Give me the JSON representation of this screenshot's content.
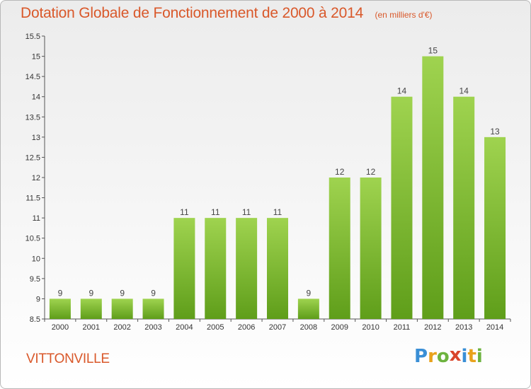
{
  "chart_data": {
    "type": "bar",
    "title": "Dotation Globale de Fonctionnement de 2000 à 2014",
    "unit": "(en milliers d'€)",
    "categories": [
      "2000",
      "2001",
      "2002",
      "2003",
      "2004",
      "2005",
      "2006",
      "2007",
      "2008",
      "2009",
      "2010",
      "2011",
      "2012",
      "2013",
      "2014"
    ],
    "values": [
      9,
      9,
      9,
      9,
      11,
      11,
      11,
      11,
      9,
      12,
      12,
      14,
      15,
      14,
      13
    ],
    "ylim": [
      8.5,
      15.5
    ],
    "yticks": [
      "8.5",
      "9",
      "9.5",
      "10",
      "10.5",
      "11",
      "11.5",
      "12",
      "12.5",
      "13",
      "13.5",
      "14",
      "14.5",
      "15",
      "15.5"
    ],
    "grid": false,
    "bar_color": "#7bbd2e",
    "xlabel": "",
    "ylabel": ""
  },
  "footer": {
    "commune": "VITTONVILLE",
    "logo_letters": [
      "P",
      "r",
      "o",
      "x",
      "i",
      "t",
      "i"
    ],
    "logo_colors": [
      "#3a8fd6",
      "#e8a21c",
      "#6db33f",
      "#d9452b",
      "#3a8fd6",
      "#e8a21c",
      "#6db33f"
    ]
  }
}
